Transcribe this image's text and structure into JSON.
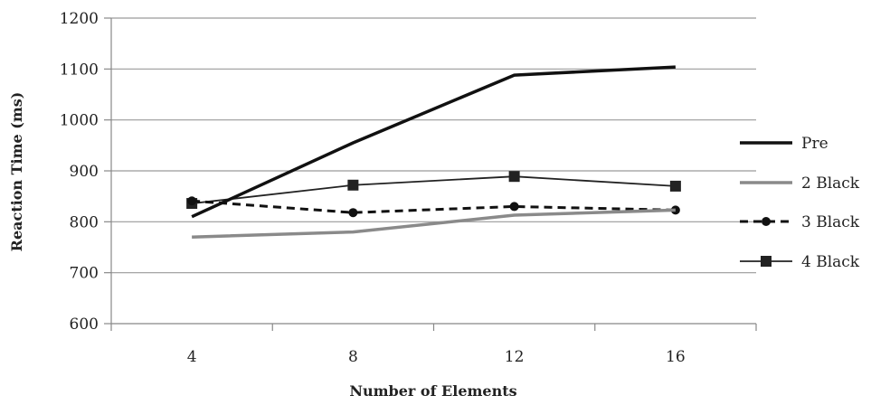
{
  "chart_data": {
    "type": "line",
    "xlabel": "Number of Elements",
    "ylabel": "Reaction Time (ms)",
    "categories": [
      "4",
      "8",
      "12",
      "16"
    ],
    "ylim": [
      600,
      1200
    ],
    "yticks": [
      600,
      700,
      800,
      900,
      1000,
      1100,
      1200
    ],
    "grid": true,
    "legend_position": "right",
    "series": [
      {
        "name": "Pre",
        "values": [
          810,
          955,
          1088,
          1104
        ],
        "color": "#111111",
        "style": "solid-thick",
        "marker": "none"
      },
      {
        "name": "2 Black",
        "values": [
          770,
          780,
          813,
          823
        ],
        "color": "#8a8a8a",
        "style": "solid-thick",
        "marker": "none"
      },
      {
        "name": "3 Black",
        "values": [
          841,
          818,
          830,
          823
        ],
        "color": "#111111",
        "style": "dashed",
        "marker": "circle"
      },
      {
        "name": "4 Black",
        "values": [
          836,
          872,
          889,
          870
        ],
        "color": "#222222",
        "style": "solid-thin",
        "marker": "square"
      }
    ]
  }
}
